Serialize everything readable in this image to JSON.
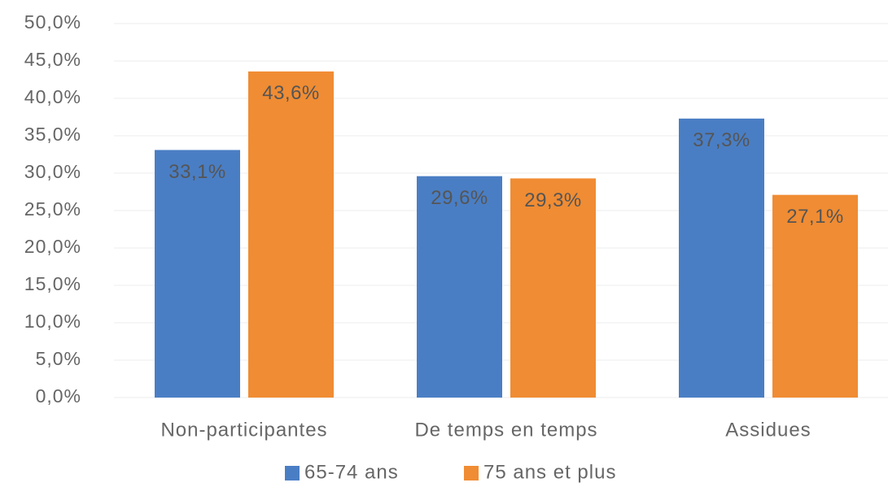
{
  "chart_data": {
    "type": "bar",
    "categories": [
      "Non-participantes",
      "De temps en temps",
      "Assidues"
    ],
    "series": [
      {
        "name": "65-74 ans",
        "color": "#4a7ec4",
        "values": [
          33.1,
          29.6,
          37.3
        ],
        "value_labels": [
          "33,1%",
          "29,6%",
          "37,3%"
        ]
      },
      {
        "name": "75 ans et plus",
        "color": "#f08c33",
        "values": [
          43.6,
          29.3,
          27.1
        ],
        "value_labels": [
          "43,6%",
          "29,3%",
          "27,1%"
        ]
      }
    ],
    "ylim": [
      0,
      50
    ],
    "yticks": [
      {
        "value": 0,
        "label": "0,0%"
      },
      {
        "value": 5,
        "label": "5,0%"
      },
      {
        "value": 10,
        "label": "10,0%"
      },
      {
        "value": 15,
        "label": "15,0%"
      },
      {
        "value": 20,
        "label": "20,0%"
      },
      {
        "value": 25,
        "label": "25,0%"
      },
      {
        "value": 30,
        "label": "30,0%"
      },
      {
        "value": 35,
        "label": "35,0%"
      },
      {
        "value": 40,
        "label": "40,0%"
      },
      {
        "value": 45,
        "label": "45,0%"
      },
      {
        "value": 50,
        "label": "50,0%"
      }
    ],
    "grid": true,
    "legend": "bottom"
  }
}
